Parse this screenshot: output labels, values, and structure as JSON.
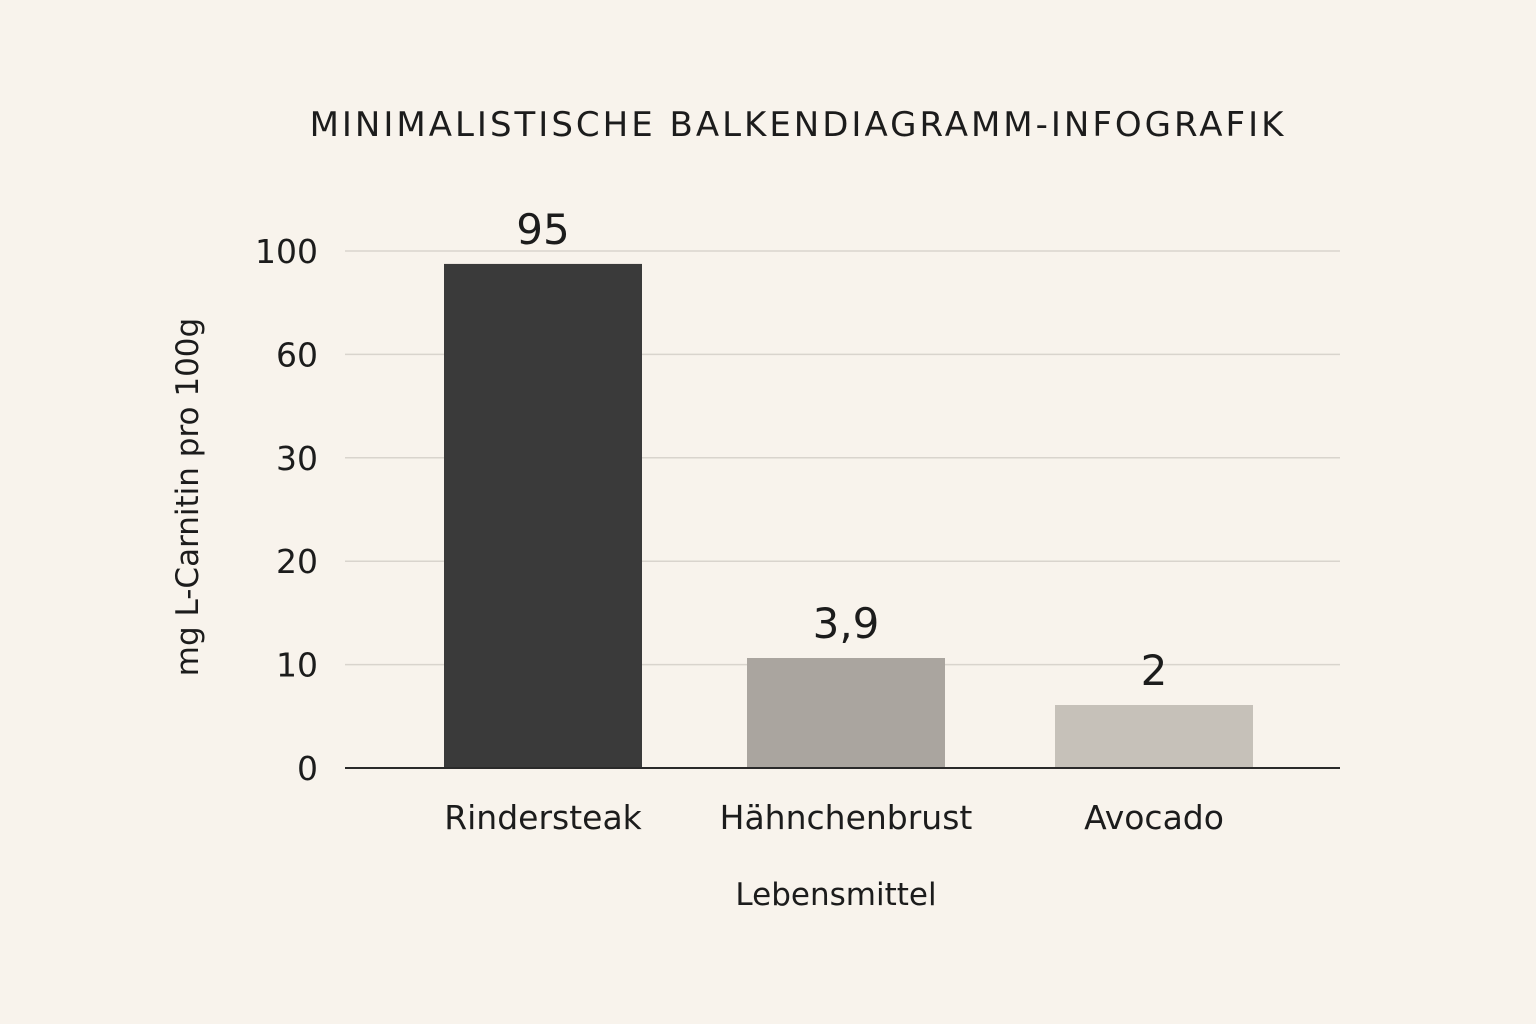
{
  "colors": {
    "background": "#f8f3ec",
    "bars": [
      "#3a3a3a",
      "#aaa59f",
      "#c6c1b9"
    ],
    "text": "#1c1c1c",
    "grid": "#d9d4cd"
  },
  "chart_data": {
    "type": "bar",
    "title": "MINIMALISTISCHE BALKENDIAGRAMM-INFOGRAFIK",
    "xlabel": "Lebensmittel",
    "ylabel": "mg L-Carnitin pro 100g",
    "categories": [
      "Rindersteak",
      "Hähnchenbrust",
      "Avocado"
    ],
    "values": [
      95,
      3.9,
      2
    ],
    "data_labels": [
      "95",
      "3,9",
      "2"
    ],
    "y_ticks": [
      "0",
      "10",
      "20",
      "30",
      "60",
      "100"
    ],
    "grid": true,
    "legend": "none"
  }
}
